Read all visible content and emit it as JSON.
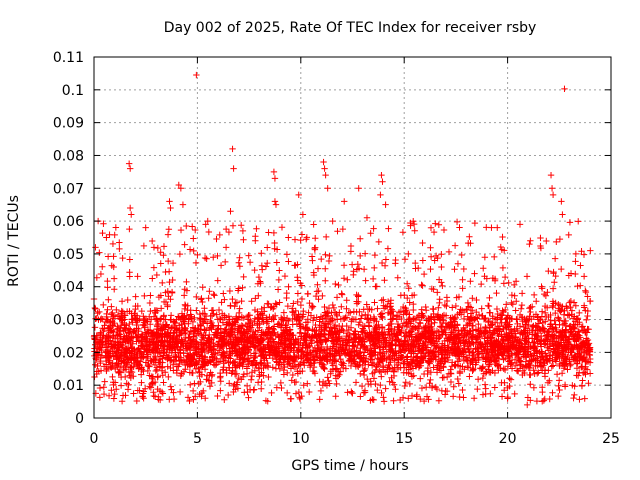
{
  "chart_data": {
    "type": "scatter",
    "title": "Day 002 of 2025, Rate Of TEC Index for receiver rsby",
    "xlabel": "GPS time / hours",
    "ylabel": "ROTI / TECUs",
    "xlim": [
      0,
      25
    ],
    "ylim": [
      0,
      0.11
    ],
    "xticks": [
      "0",
      "5",
      "10",
      "15",
      "20",
      "25"
    ],
    "xtick_values": [
      0,
      5,
      10,
      15,
      20,
      25
    ],
    "yticks": [
      "0",
      "0.01",
      "0.02",
      "0.03",
      "0.04",
      "0.05",
      "0.06",
      "0.07",
      "0.08",
      "0.09",
      "0.1",
      "0.11"
    ],
    "ytick_values": [
      0,
      0.01,
      0.02,
      0.03,
      0.04,
      0.05,
      0.06,
      0.07,
      0.08,
      0.09,
      0.1,
      0.11
    ],
    "grid": true,
    "marker": "plus",
    "color": "#ff0000",
    "series": [
      {
        "name": "ROTI",
        "x_range": [
          0,
          24
        ],
        "dense_band": [
          0.008,
          0.035
        ],
        "points": [
          [
            4.95,
            0.1045
          ],
          [
            22.75,
            0.1003
          ],
          [
            6.7,
            0.082
          ],
          [
            6.75,
            0.076
          ],
          [
            1.7,
            0.0775
          ],
          [
            1.75,
            0.076
          ],
          [
            8.7,
            0.075
          ],
          [
            8.75,
            0.073
          ],
          [
            11.1,
            0.078
          ],
          [
            11.15,
            0.076
          ],
          [
            11.2,
            0.074
          ],
          [
            22.1,
            0.074
          ],
          [
            22.15,
            0.07
          ],
          [
            22.2,
            0.068
          ],
          [
            4.1,
            0.071
          ],
          [
            4.2,
            0.07
          ],
          [
            13.9,
            0.074
          ],
          [
            13.95,
            0.072
          ],
          [
            12.8,
            0.07
          ],
          [
            13.85,
            0.068
          ],
          [
            11.3,
            0.07
          ],
          [
            22.6,
            0.066
          ],
          [
            22.65,
            0.062
          ],
          [
            8.75,
            0.066
          ],
          [
            8.8,
            0.065
          ],
          [
            9.9,
            0.068
          ],
          [
            3.65,
            0.066
          ],
          [
            3.7,
            0.064
          ],
          [
            4.3,
            0.065
          ],
          [
            0.2,
            0.06
          ],
          [
            1.75,
            0.064
          ],
          [
            1.8,
            0.062
          ],
          [
            5.4,
            0.059
          ],
          [
            5.5,
            0.06
          ],
          [
            6.6,
            0.063
          ],
          [
            10.1,
            0.062
          ],
          [
            12.1,
            0.066
          ],
          [
            13.2,
            0.061
          ],
          [
            14.1,
            0.065
          ],
          [
            19.5,
            0.058
          ],
          [
            20.6,
            0.059
          ],
          [
            24.0,
            0.051
          ],
          [
            2.5,
            0.058
          ],
          [
            7.2,
            0.057
          ],
          [
            15.2,
            0.05
          ],
          [
            16.8,
            0.046
          ],
          [
            17.6,
            0.047
          ],
          [
            18.4,
            0.044
          ],
          [
            23.3,
            0.05
          ],
          [
            0.6,
            0.055
          ],
          [
            2.9,
            0.052
          ],
          [
            9.4,
            0.055
          ],
          [
            15.9,
            0.048
          ],
          [
            21.1,
            0.054
          ],
          [
            7.8,
            0.054
          ],
          [
            18.9,
            0.049
          ],
          [
            13.7,
            0.0085
          ],
          [
            20.95,
            0.004
          ],
          [
            2.4,
            0.006
          ],
          [
            3.2,
            0.0055
          ]
        ]
      }
    ]
  }
}
